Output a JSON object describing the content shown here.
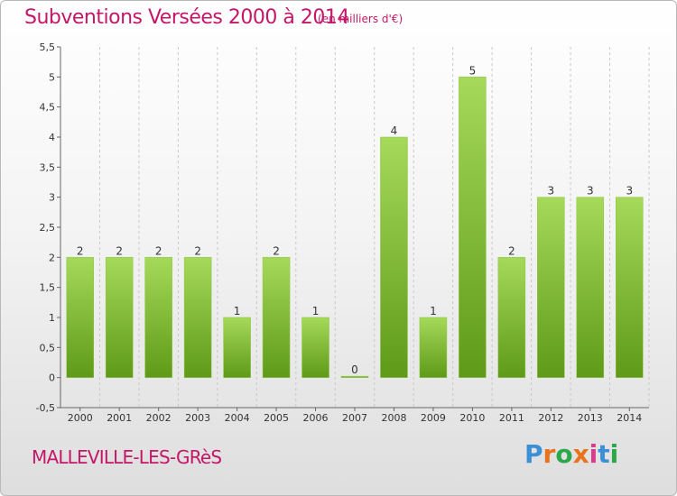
{
  "header": {
    "title": "Subventions Versées 2000 à 2014",
    "unit_note": "(en milliers d'€)"
  },
  "footer": {
    "commune": "MALLEVILLE-LES-GRèS",
    "logo_text": "Proxiti",
    "logo_colors": [
      "#3a8fd6",
      "#e8731c",
      "#2aa84a",
      "#e8731c",
      "#d93a8c",
      "#3a8fd6",
      "#2aa84a"
    ]
  },
  "colors": {
    "bar_top": "#a6d95a",
    "bar_bottom": "#5e9a18",
    "title": "#c4176a"
  },
  "chart_data": {
    "type": "bar",
    "categories": [
      "2000",
      "2001",
      "2002",
      "2003",
      "2004",
      "2005",
      "2006",
      "2007",
      "2008",
      "2009",
      "2010",
      "2011",
      "2012",
      "2013",
      "2014"
    ],
    "values": [
      2,
      2,
      2,
      2,
      1,
      2,
      1,
      0,
      4,
      1,
      5,
      2,
      3,
      3,
      3
    ],
    "data_labels": [
      "2",
      "2",
      "2",
      "2",
      "1",
      "2",
      "1",
      "0",
      "4",
      "1",
      "5",
      "2",
      "3",
      "3",
      "3"
    ],
    "ylim": [
      -0.5,
      5.5
    ],
    "yticks": [
      -0.5,
      0,
      0.5,
      1,
      1.5,
      2,
      2.5,
      3,
      3.5,
      4,
      4.5,
      5,
      5.5
    ],
    "ytick_labels": [
      "-0,5",
      "0",
      "0,5",
      "1",
      "1,5",
      "2",
      "2,5",
      "3",
      "3,5",
      "4",
      "4,5",
      "5",
      "5,5"
    ],
    "grid": "vertical dashed",
    "legend": "none"
  }
}
